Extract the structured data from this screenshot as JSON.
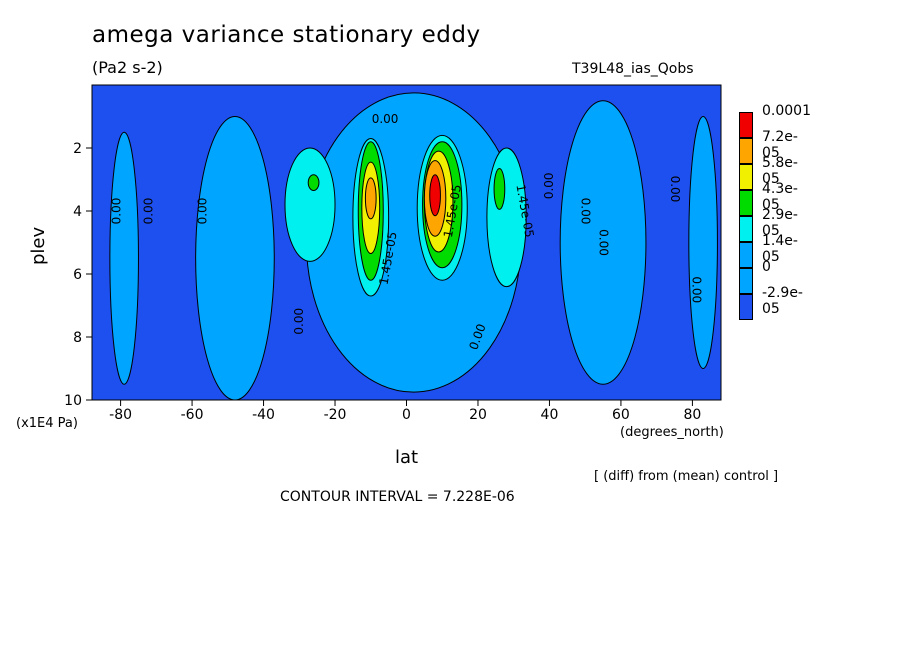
{
  "figure": {
    "title": "amega variance stationary eddy",
    "units": "(Pa2 s-2)",
    "run_name": "T39L48_ias_Qobs",
    "x_units": "(degrees_north)",
    "y_units": "(x1E4 Pa)",
    "diff_note": "[ (diff) from (mean) control ]",
    "contour_interval": "CONTOUR INTERVAL = 7.228E-06"
  },
  "colors": {
    "c_neg": "#1e50f0",
    "c_zero": "#00a5ff",
    "c_1": "#00f0f0",
    "c_2": "#00dc00",
    "c_3": "#f0f000",
    "c_4": "#ffa500",
    "c_5": "#f00000"
  },
  "chart_data": {
    "type": "heatmap",
    "title": "amega variance stationary eddy",
    "xlabel": "lat",
    "ylabel": "plev",
    "xlim": [
      -88,
      88
    ],
    "ylim": [
      0,
      10
    ],
    "y_reversed": true,
    "x_ticks": [
      -80,
      -60,
      -40,
      -20,
      0,
      20,
      40,
      60,
      80
    ],
    "y_ticks": [
      2,
      4,
      6,
      8,
      10
    ],
    "colorbar": {
      "levels": [
        "0.0001",
        "7.2e-05",
        "5.8e-05",
        "4.3e-05",
        "2.9e-05",
        "1.4e-05",
        "0",
        "-2.9e-05"
      ],
      "colors": [
        "#f00000",
        "#ffa500",
        "#f0f000",
        "#00dc00",
        "#00f0f0",
        "#00a5ff",
        "#00a5ff",
        "#1e50f0"
      ]
    },
    "contour_labels": [
      {
        "text": "0.00",
        "lat": -6,
        "plev": 1.1,
        "rot": 0
      },
      {
        "text": "0.00",
        "lat": -81,
        "plev": 4.0,
        "rot": -90
      },
      {
        "text": "0.00",
        "lat": -72,
        "plev": 4.0,
        "rot": -90
      },
      {
        "text": "0.00",
        "lat": -57,
        "plev": 4.0,
        "rot": -90
      },
      {
        "text": "0.00",
        "lat": -30,
        "plev": 7.5,
        "rot": -90
      },
      {
        "text": "1.45e-05",
        "lat": -5,
        "plev": 5.5,
        "rot": -80
      },
      {
        "text": "1.45e-05",
        "lat": 13,
        "plev": 4.0,
        "rot": -80
      },
      {
        "text": "1.45e-05",
        "lat": 33,
        "plev": 4.0,
        "rot": 80
      },
      {
        "text": "0.00",
        "lat": 20,
        "plev": 8.0,
        "rot": -70
      },
      {
        "text": "0.00",
        "lat": 40,
        "plev": 3.2,
        "rot": -90
      },
      {
        "text": "0.00",
        "lat": 50,
        "plev": 4.0,
        "rot": 90
      },
      {
        "text": "0.00",
        "lat": 55,
        "plev": 5.0,
        "rot": 90
      },
      {
        "text": "0.00",
        "lat": 75,
        "plev": 3.3,
        "rot": 90
      },
      {
        "text": "0.00",
        "lat": 81,
        "plev": 6.5,
        "rot": 90
      }
    ],
    "features": [
      {
        "name": "zone-zero-mid-sh",
        "level": "zero",
        "lat": -48,
        "plev": 5.5,
        "width_deg": 22,
        "depth_plev": 9
      },
      {
        "name": "zone-zero-tropics",
        "level": "zero",
        "lat": 2,
        "plev": 5.0,
        "width_deg": 60,
        "depth_plev": 9.5
      },
      {
        "name": "zone-zero-mid-nh",
        "level": "zero",
        "lat": 55,
        "plev": 5.0,
        "width_deg": 24,
        "depth_plev": 9
      },
      {
        "name": "zone-zero-high-sh",
        "level": "zero",
        "lat": -79,
        "plev": 5.5,
        "width_deg": 8,
        "depth_plev": 8
      },
      {
        "name": "zone-zero-polar-nh",
        "level": "zero",
        "lat": 83,
        "plev": 5.0,
        "width_deg": 8,
        "depth_plev": 8
      },
      {
        "name": "lobe-sh-subtropic",
        "level": "1",
        "lat": -27,
        "plev": 3.8,
        "width_deg": 14,
        "depth_plev": 3.6
      },
      {
        "name": "peak-sh-subtropic",
        "level": "2",
        "lat": -26,
        "plev": 3.1,
        "width_deg": 3,
        "depth_plev": 0.5
      },
      {
        "name": "lobe-sh-tropic",
        "level": "1",
        "lat": -10,
        "plev": 4.2,
        "width_deg": 10,
        "depth_plev": 5.0
      },
      {
        "name": "band-sh-tropic-2",
        "level": "2",
        "lat": -10,
        "plev": 4.0,
        "width_deg": 7,
        "depth_plev": 4.4
      },
      {
        "name": "band-sh-tropic-3",
        "level": "3",
        "lat": -10,
        "plev": 3.9,
        "width_deg": 5,
        "depth_plev": 2.9
      },
      {
        "name": "band-sh-tropic-4",
        "level": "4",
        "lat": -10,
        "plev": 3.6,
        "width_deg": 3,
        "depth_plev": 1.3
      },
      {
        "name": "lobe-nh-tropic",
        "level": "1",
        "lat": 10,
        "plev": 3.9,
        "width_deg": 14,
        "depth_plev": 4.6
      },
      {
        "name": "band-nh-tropic-2",
        "level": "2",
        "lat": 10,
        "plev": 3.8,
        "width_deg": 11,
        "depth_plev": 4.0
      },
      {
        "name": "band-nh-tropic-3",
        "level": "3",
        "lat": 9,
        "plev": 3.7,
        "width_deg": 8,
        "depth_plev": 3.2
      },
      {
        "name": "band-nh-tropic-4",
        "level": "4",
        "lat": 8,
        "plev": 3.6,
        "width_deg": 6,
        "depth_plev": 2.4
      },
      {
        "name": "peak-nh-tropic",
        "level": "5",
        "lat": 8,
        "plev": 3.5,
        "width_deg": 3,
        "depth_plev": 1.3
      },
      {
        "name": "lobe-nh-subtropic",
        "level": "1",
        "lat": 28,
        "plev": 4.2,
        "width_deg": 11,
        "depth_plev": 4.4
      },
      {
        "name": "peak-nh-subtropic",
        "level": "2",
        "lat": 26,
        "plev": 3.3,
        "width_deg": 3,
        "depth_plev": 1.3
      }
    ]
  }
}
